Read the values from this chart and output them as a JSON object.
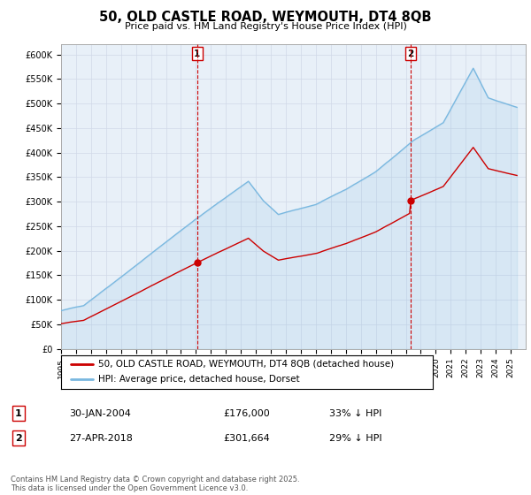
{
  "title": "50, OLD CASTLE ROAD, WEYMOUTH, DT4 8QB",
  "subtitle": "Price paid vs. HM Land Registry's House Price Index (HPI)",
  "ylabel_ticks": [
    "£0",
    "£50K",
    "£100K",
    "£150K",
    "£200K",
    "£250K",
    "£300K",
    "£350K",
    "£400K",
    "£450K",
    "£500K",
    "£550K",
    "£600K"
  ],
  "ytick_values": [
    0,
    50000,
    100000,
    150000,
    200000,
    250000,
    300000,
    350000,
    400000,
    450000,
    500000,
    550000,
    600000
  ],
  "hpi_color": "#7ab8e0",
  "price_color": "#cc0000",
  "vline_color": "#cc0000",
  "marker1": {
    "date_num": 2004.08,
    "label": "1",
    "price": 176000,
    "date_str": "30-JAN-2004",
    "pct": "33% ↓ HPI"
  },
  "marker2": {
    "date_num": 2018.33,
    "label": "2",
    "price": 301664,
    "date_str": "27-APR-2018",
    "pct": "29% ↓ HPI"
  },
  "legend_price_label": "50, OLD CASTLE ROAD, WEYMOUTH, DT4 8QB (detached house)",
  "legend_hpi_label": "HPI: Average price, detached house, Dorset",
  "footnote": "Contains HM Land Registry data © Crown copyright and database right 2025.\nThis data is licensed under the Open Government Licence v3.0.",
  "xmin": 1995,
  "xmax": 2026,
  "ymin": 0,
  "ymax": 620000,
  "background_color": "#ffffff",
  "grid_color": "#d0d8e8",
  "chart_bg": "#e8f0f8"
}
